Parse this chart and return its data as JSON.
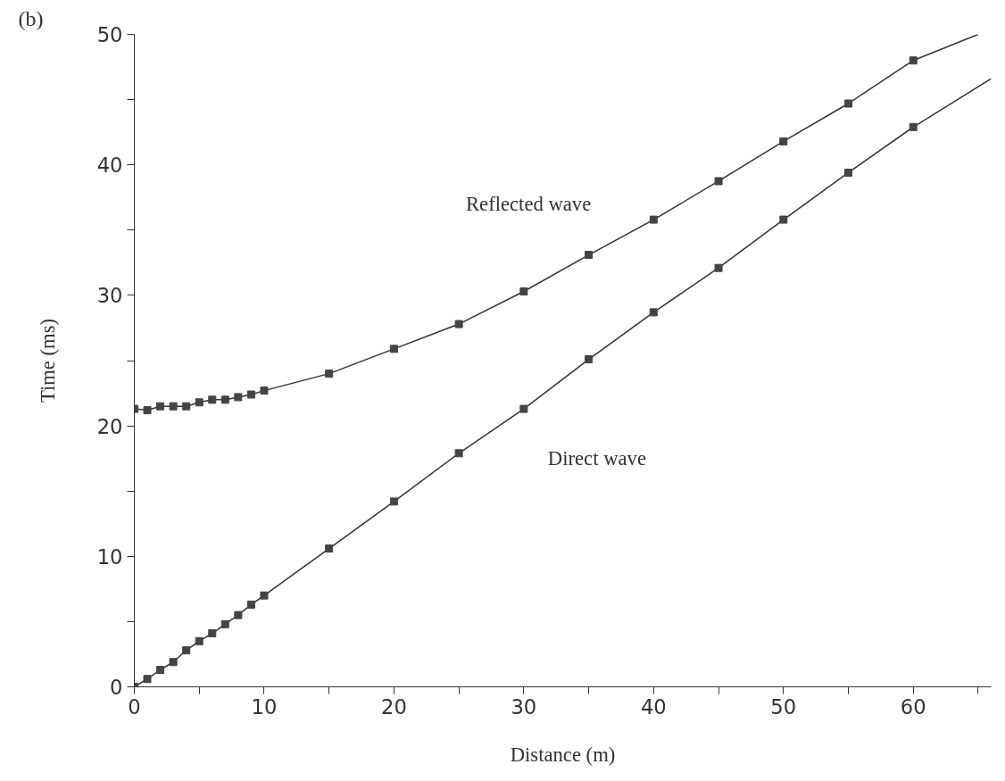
{
  "chart_data": {
    "type": "line",
    "xlabel": "Distance (m)",
    "ylabel": "Time (ms)",
    "xlim": [
      0,
      66
    ],
    "ylim": [
      0,
      50
    ],
    "xticks": [
      0,
      {
        "value": 5,
        "label": null
      },
      10,
      {
        "value": 15,
        "label": null
      },
      20,
      {
        "value": 25,
        "label": null
      },
      30,
      {
        "value": 35,
        "label": null
      },
      40,
      {
        "value": 45,
        "label": null
      },
      50,
      {
        "value": 55,
        "label": null
      },
      60,
      {
        "value": 65,
        "label": null
      }
    ],
    "yticks": [
      0,
      {
        "value": 5,
        "label": null
      },
      10,
      {
        "value": 15,
        "label": null
      },
      20,
      {
        "value": 25,
        "label": null
      },
      30,
      {
        "value": 35,
        "label": null
      },
      40,
      {
        "value": 45,
        "label": null
      },
      50
    ],
    "grid": false,
    "series": [
      {
        "color": "#333333",
        "line_style": "solid",
        "x": [
          0,
          1,
          2,
          3,
          4,
          5,
          6,
          7,
          8,
          9,
          10,
          15,
          20,
          25,
          30,
          35,
          40,
          45,
          50,
          55,
          60,
          65
        ],
        "values": [
          21.3,
          21.2,
          21.5,
          21.5,
          21.5,
          21.8,
          22.0,
          22.0,
          22.2,
          22.4,
          22.7,
          24.0,
          25.9,
          27.8,
          30.3,
          33.1,
          35.8,
          38.75,
          41.8,
          44.7,
          48.0,
          50.0
        ]
      },
      {
        "type": "scatter",
        "marker": "square",
        "color": "#444444",
        "x": [
          0,
          1,
          2,
          3,
          4,
          5,
          6,
          7,
          8,
          9,
          10,
          15,
          20,
          25,
          30,
          35,
          40,
          45,
          50,
          55,
          60
        ],
        "values": [
          21.3,
          21.2,
          21.5,
          21.5,
          21.5,
          21.8,
          22.0,
          22.0,
          22.2,
          22.4,
          22.7,
          24.0,
          25.9,
          27.8,
          30.3,
          33.1,
          35.8,
          38.75,
          41.8,
          44.7,
          48.0
        ]
      },
      {
        "color": "#333333",
        "line_style": "solid",
        "x": [
          0,
          1,
          2,
          3,
          4,
          5,
          6,
          7,
          8,
          9,
          10,
          15,
          20,
          25,
          30,
          35,
          40,
          45,
          50,
          55,
          60,
          66
        ],
        "values": [
          0,
          0.6,
          1.3,
          1.9,
          2.8,
          3.5,
          4.1,
          4.8,
          5.5,
          6.3,
          7.0,
          10.6,
          14.2,
          17.9,
          21.3,
          25.1,
          28.7,
          32.1,
          35.8,
          39.4,
          42.9,
          46.6
        ]
      },
      {
        "type": "scatter",
        "marker": "square",
        "color": "#444444",
        "x": [
          0,
          1,
          2,
          3,
          4,
          5,
          6,
          7,
          8,
          9,
          10,
          15,
          20,
          25,
          30,
          35,
          40,
          45,
          50,
          55,
          60
        ],
        "values": [
          0,
          0.6,
          1.3,
          1.9,
          2.8,
          3.5,
          4.1,
          4.8,
          5.5,
          6.3,
          7.0,
          10.6,
          14.2,
          17.9,
          21.3,
          25.1,
          28.7,
          32.1,
          35.8,
          39.4,
          42.9
        ]
      }
    ],
    "annotations": [
      "(b)",
      "Reflected wave",
      "Direct wave"
    ]
  }
}
